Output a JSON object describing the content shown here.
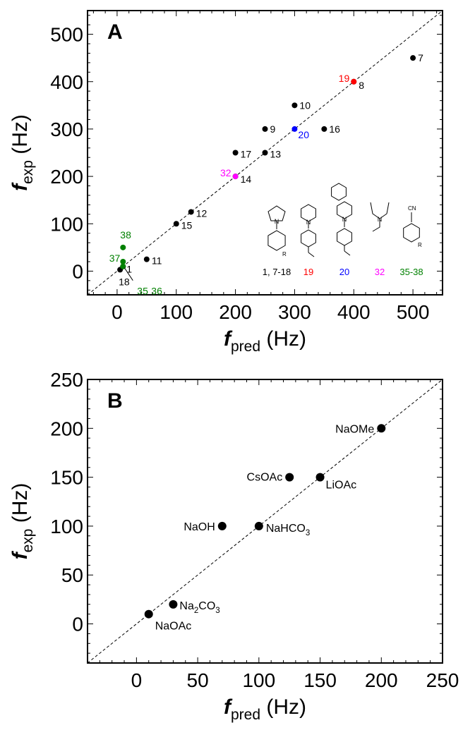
{
  "chart_data": [
    {
      "type": "scatter",
      "panel_label": "A",
      "xlabel": {
        "main": "f",
        "sub": "pred",
        "unit": " (Hz)"
      },
      "ylabel": {
        "main": "f",
        "sub": "exp",
        "unit": " (Hz)"
      },
      "xlim": [
        -50,
        550
      ],
      "ylim": [
        -50,
        550
      ],
      "xticks": [
        0,
        100,
        200,
        300,
        400,
        500
      ],
      "yticks": [
        0,
        100,
        200,
        300,
        400,
        500
      ],
      "reference_line": "y = x",
      "points": [
        {
          "label": "1",
          "x": 10,
          "y": 10,
          "color": "#000000"
        },
        {
          "label": "7",
          "x": 500,
          "y": 450,
          "color": "#000000"
        },
        {
          "label": "8",
          "x": 400,
          "y": 400,
          "color": "#000000"
        },
        {
          "label": "9",
          "x": 250,
          "y": 300,
          "color": "#000000"
        },
        {
          "label": "10",
          "x": 300,
          "y": 350,
          "color": "#000000"
        },
        {
          "label": "11",
          "x": 50,
          "y": 25,
          "color": "#000000"
        },
        {
          "label": "12",
          "x": 125,
          "y": 125,
          "color": "#000000"
        },
        {
          "label": "13",
          "x": 250,
          "y": 250,
          "color": "#000000"
        },
        {
          "label": "14",
          "x": 200,
          "y": 200,
          "color": "#000000"
        },
        {
          "label": "15",
          "x": 100,
          "y": 100,
          "color": "#000000"
        },
        {
          "label": "16",
          "x": 350,
          "y": 300,
          "color": "#000000"
        },
        {
          "label": "17",
          "x": 200,
          "y": 250,
          "color": "#000000"
        },
        {
          "label": "18",
          "x": 5,
          "y": 3,
          "color": "#000000"
        },
        {
          "label": "19",
          "x": 400,
          "y": 400,
          "color": "#ff0000"
        },
        {
          "label": "20",
          "x": 300,
          "y": 300,
          "color": "#0000ff"
        },
        {
          "label": "32",
          "x": 200,
          "y": 200,
          "color": "#ff00ff"
        },
        {
          "label": "35",
          "x": 10,
          "y": 10,
          "color": "#008000"
        },
        {
          "label": "36",
          "x": 10,
          "y": 10,
          "color": "#008000"
        },
        {
          "label": "37",
          "x": 10,
          "y": 20,
          "color": "#008000"
        },
        {
          "label": "38",
          "x": 10,
          "y": 50,
          "color": "#008000"
        }
      ],
      "structure_legend": [
        {
          "label": "1, 7-18",
          "color": "#000000",
          "substituent": "R"
        },
        {
          "label": "19",
          "color": "#ff0000",
          "substituent": ""
        },
        {
          "label": "20",
          "color": "#0000ff",
          "substituent": ""
        },
        {
          "label": "32",
          "color": "#ff00ff",
          "substituent": ""
        },
        {
          "label": "35-38",
          "color": "#008000",
          "substituent": "CN R"
        }
      ]
    },
    {
      "type": "scatter",
      "panel_label": "B",
      "xlabel": {
        "main": "f",
        "sub": "pred",
        "unit": " (Hz)"
      },
      "ylabel": {
        "main": "f",
        "sub": "exp",
        "unit": " (Hz)"
      },
      "xlim": [
        -40,
        250
      ],
      "ylim": [
        -40,
        250
      ],
      "xticks": [
        0,
        50,
        100,
        150,
        200,
        250
      ],
      "yticks": [
        0,
        50,
        100,
        150,
        200,
        250
      ],
      "reference_line": "y = x",
      "points": [
        {
          "label": "NaOAc",
          "x": 10,
          "y": 10,
          "color": "#000000"
        },
        {
          "label": "Na2CO3",
          "x": 30,
          "y": 20,
          "color": "#000000"
        },
        {
          "label": "NaOH",
          "x": 70,
          "y": 100,
          "color": "#000000"
        },
        {
          "label": "NaHCO3",
          "x": 100,
          "y": 100,
          "color": "#000000"
        },
        {
          "label": "CsOAc",
          "x": 125,
          "y": 150,
          "color": "#000000"
        },
        {
          "label": "LiOAc",
          "x": 150,
          "y": 150,
          "color": "#000000"
        },
        {
          "label": "NaOMe",
          "x": 200,
          "y": 200,
          "color": "#000000"
        }
      ]
    }
  ]
}
